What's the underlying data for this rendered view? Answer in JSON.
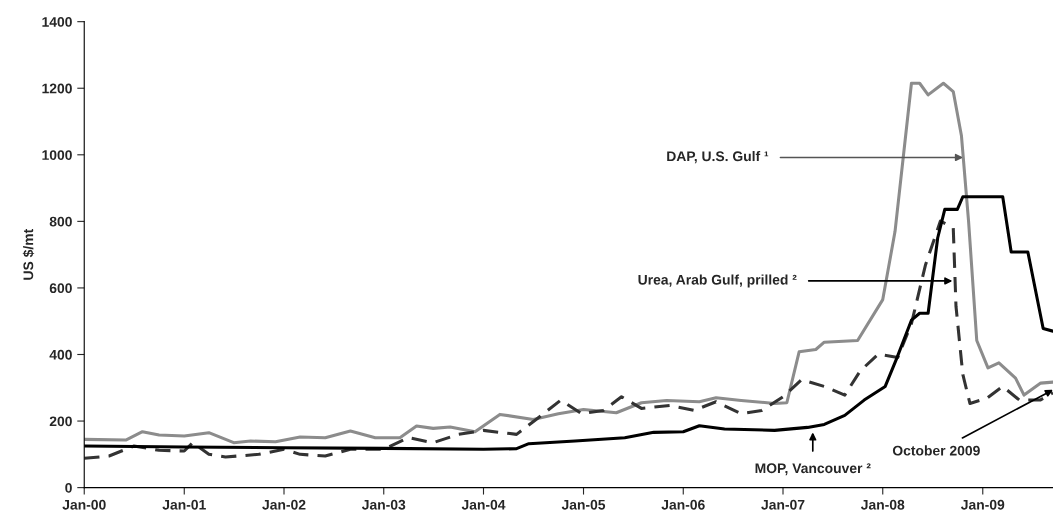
{
  "chart_data": {
    "type": "line",
    "ylabel": "US $/mt",
    "xlim": [
      "2000-01-01",
      "2009-09-15"
    ],
    "xticks": [
      {
        "value": "2000-01-01",
        "label": "Jan-00"
      },
      {
        "value": "2001-01-01",
        "label": "Jan-01"
      },
      {
        "value": "2002-01-01",
        "label": "Jan-02"
      },
      {
        "value": "2003-01-01",
        "label": "Jan-03"
      },
      {
        "value": "2004-01-01",
        "label": "Jan-04"
      },
      {
        "value": "2005-01-01",
        "label": "Jan-05"
      },
      {
        "value": "2006-01-01",
        "label": "Jan-06"
      },
      {
        "value": "2007-01-01",
        "label": "Jan-07"
      },
      {
        "value": "2008-01-01",
        "label": "Jan-08"
      },
      {
        "value": "2009-01-01",
        "label": "Jan-09"
      }
    ],
    "ylim": [
      0,
      1400
    ],
    "yticks": [
      0,
      200,
      400,
      600,
      800,
      1000,
      1200,
      1400
    ],
    "grid": false,
    "legend": false,
    "marker": "none",
    "series": [
      {
        "color": "#8c8c8c",
        "line_style": "solid",
        "x": [
          "2000-01-01",
          "2000-06-01",
          "2000-08-01",
          "2000-10-01",
          "2001-01-01",
          "2001-04-01",
          "2001-07-01",
          "2001-09-01",
          "2001-12-01",
          "2002-03-01",
          "2002-06-01",
          "2002-09-01",
          "2002-12-01",
          "2003-03-01",
          "2003-05-01",
          "2003-07-01",
          "2003-09-01",
          "2003-12-01",
          "2004-03-01",
          "2004-07-01",
          "2004-10-01",
          "2005-01-01",
          "2005-05-01",
          "2005-08-01",
          "2005-11-01",
          "2006-03-01",
          "2006-05-01",
          "2006-08-01",
          "2006-12-01",
          "2007-01-15",
          "2007-03-01",
          "2007-05-01",
          "2007-06-01",
          "2007-10-01",
          "2008-01-01",
          "2008-02-15",
          "2008-04-15",
          "2008-05-15",
          "2008-06-15",
          "2008-08-10",
          "2008-09-15",
          "2008-10-15",
          "2008-11-10",
          "2008-12-10",
          "2009-01-20",
          "2009-03-01",
          "2009-05-01",
          "2009-06-01",
          "2009-08-01",
          "2009-09-15"
        ],
        "values": [
          145,
          143,
          168,
          158,
          155,
          165,
          135,
          140,
          138,
          152,
          150,
          170,
          150,
          150,
          185,
          178,
          182,
          168,
          220,
          205,
          222,
          235,
          225,
          255,
          262,
          258,
          270,
          262,
          253,
          255,
          408,
          415,
          437,
          442,
          565,
          770,
          1215,
          1215,
          1180,
          1215,
          1190,
          1057,
          801,
          442,
          360,
          375,
          329,
          278,
          314,
          317
        ]
      },
      {
        "color": "#333333",
        "line_style": "dashed",
        "x": [
          "2000-01-01",
          "2000-04-01",
          "2000-07-01",
          "2000-10-01",
          "2001-01-01",
          "2001-02-01",
          "2001-04-01",
          "2001-06-01",
          "2001-10-01",
          "2002-01-01",
          "2002-03-01",
          "2002-06-01",
          "2002-09-01",
          "2003-01-01",
          "2003-04-01",
          "2003-07-01",
          "2003-10-01",
          "2004-01-01",
          "2004-05-01",
          "2004-07-15",
          "2004-10-10",
          "2004-12-25",
          "2005-03-15",
          "2005-05-20",
          "2005-08-01",
          "2005-11-15",
          "2006-02-10",
          "2006-05-01",
          "2006-08-01",
          "2006-10-15",
          "2007-01-01",
          "2007-03-10",
          "2007-06-01",
          "2007-08-15",
          "2007-10-10",
          "2007-12-15",
          "2008-02-25",
          "2008-04-15",
          "2008-06-05",
          "2008-07-30",
          "2008-09-15",
          "2008-09-25",
          "2008-10-20",
          "2008-11-15",
          "2009-01-15",
          "2009-03-15",
          "2009-05-15",
          "2009-07-30",
          "2009-09-15"
        ],
        "values": [
          88,
          95,
          125,
          112,
          110,
          135,
          100,
          92,
          100,
          115,
          100,
          95,
          115,
          115,
          150,
          135,
          160,
          172,
          160,
          207,
          263,
          222,
          232,
          273,
          238,
          247,
          232,
          258,
          222,
          232,
          273,
          324,
          304,
          278,
          350,
          401,
          391,
          493,
          668,
          801,
          780,
          545,
          340,
          253,
          268,
          304,
          263,
          263,
          285
        ]
      },
      {
        "color": "#000000",
        "line_style": "solid",
        "x": [
          "2000-01-01",
          "2001-01-01",
          "2002-01-01",
          "2003-01-01",
          "2004-01-01",
          "2004-05-01",
          "2004-06-15",
          "2004-12-01",
          "2005-06-01",
          "2005-09-15",
          "2006-01-01",
          "2006-03-01",
          "2006-06-01",
          "2006-12-01",
          "2007-04-01",
          "2007-06-01",
          "2007-08-15",
          "2007-10-25",
          "2008-01-10",
          "2008-02-20",
          "2008-04-15",
          "2008-05-15",
          "2008-06-15",
          "2008-07-20",
          "2008-08-15",
          "2008-09-30",
          "2008-10-20",
          "2009-03-15",
          "2009-04-15",
          "2009-06-15",
          "2009-08-10",
          "2009-09-15"
        ],
        "values": [
          125,
          122,
          120,
          118,
          115,
          117,
          132,
          140,
          150,
          166,
          168,
          186,
          176,
          172,
          181,
          190,
          217,
          263,
          304,
          386,
          503,
          524,
          524,
          750,
          836,
          836,
          874,
          874,
          708,
          708,
          478,
          470
        ]
      }
    ],
    "annotations": [
      {
        "text": "DAP, U.S. Gulf ¹",
        "x": "2008-10-21",
        "y": 992
      },
      {
        "text": "Urea, Arab Gulf, prilled ²",
        "x": "2008-09-12",
        "y": 621
      },
      {
        "text": "MOP, Vancouver ²",
        "x": "2007-04-20",
        "y": 166
      },
      {
        "text": "October 2009",
        "x": "2009-09-15",
        "y": 294
      }
    ]
  }
}
